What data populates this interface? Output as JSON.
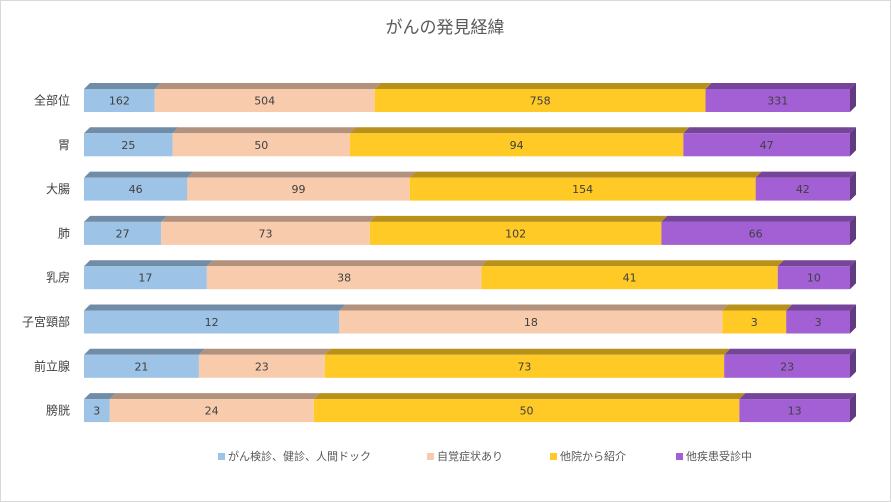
{
  "chart_data": {
    "type": "bar",
    "orientation": "horizontal",
    "stacked": "100%",
    "style": "3d",
    "title": "がんの発見経緯",
    "categories": [
      "全部位",
      "胃",
      "大腸",
      "肺",
      "乳房",
      "子宮頸部",
      "前立腺",
      "膀胱"
    ],
    "series": [
      {
        "name": "がん検診、健診、人間ドック",
        "color": "#9dc3e6",
        "values": [
          162,
          25,
          46,
          27,
          17,
          12,
          21,
          3
        ]
      },
      {
        "name": "自覚症状あり",
        "color": "#f8cbad",
        "values": [
          504,
          50,
          99,
          73,
          38,
          18,
          23,
          24
        ]
      },
      {
        "name": "他院から紹介",
        "color": "#ffc926",
        "values": [
          758,
          94,
          154,
          102,
          41,
          3,
          73,
          50
        ]
      },
      {
        "name": "他疾患受診中",
        "color": "#a260d4",
        "values": [
          331,
          47,
          42,
          66,
          10,
          3,
          23,
          13
        ]
      }
    ],
    "legend_position": "bottom",
    "grid": false
  }
}
